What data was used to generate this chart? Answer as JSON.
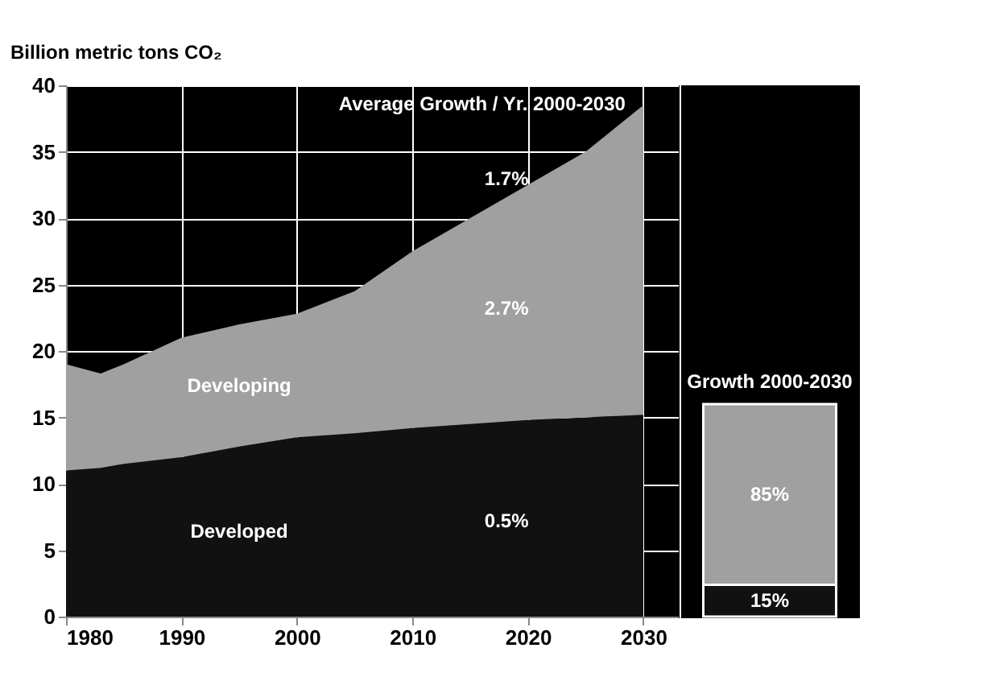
{
  "chart_data": [
    {
      "type": "area",
      "ylabel": "Billion metric tons CO₂",
      "stacked": true,
      "x": [
        1980,
        1983,
        1985,
        1990,
        1995,
        2000,
        2005,
        2010,
        2015,
        2020,
        2025,
        2030
      ],
      "series": [
        {
          "name": "Developed",
          "color": "#111111",
          "values": [
            11,
            11.2,
            11.5,
            12,
            12.8,
            13.5,
            13.8,
            14.2,
            14.5,
            14.8,
            15,
            15.2
          ]
        },
        {
          "name": "Developing",
          "color": "#a0a0a0",
          "values": [
            8,
            7.1,
            7.5,
            9,
            9.2,
            9.3,
            10.7,
            13.3,
            15.5,
            17.7,
            20,
            23.3
          ]
        }
      ],
      "xlim": [
        1980,
        2033
      ],
      "xticks": [
        1980,
        1990,
        2000,
        2010,
        2020,
        2030
      ],
      "ylim": [
        0,
        40
      ],
      "yticks": [
        0,
        5,
        10,
        15,
        20,
        25,
        30,
        35,
        40
      ],
      "grid": true,
      "annotations": [
        "Average Growth / Yr. 2000-2030",
        "1.7%",
        "2.7%",
        "0.5%"
      ]
    },
    {
      "type": "bar",
      "title": "Growth 2000-2030",
      "stacked": true,
      "categories": [
        null
      ],
      "series": [
        {
          "color": "#111111",
          "values": [
            15
          ],
          "value_labels": [
            "15%"
          ]
        },
        {
          "color": "#a0a0a0",
          "values": [
            85
          ],
          "value_labels": [
            "85%"
          ]
        }
      ],
      "tick_labels": false
    }
  ]
}
